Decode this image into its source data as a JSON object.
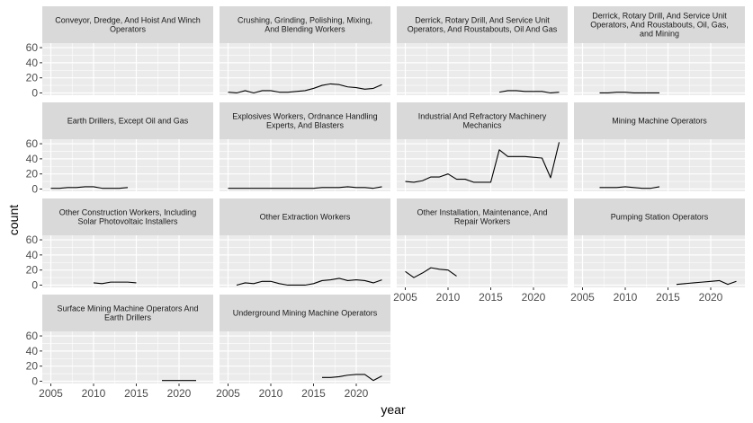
{
  "chart_data": {
    "type": "line",
    "xlabel": "year",
    "ylabel": "count",
    "xlim": [
      2004,
      2024
    ],
    "ylim": [
      -3,
      66
    ],
    "x_ticks": [
      2005,
      2010,
      2015,
      2020
    ],
    "y_ticks": [
      0,
      20,
      40,
      60
    ],
    "grid": true,
    "facets_per_row": 4,
    "colors": {
      "panel_bg": "#ebebeb",
      "strip_bg": "#d9d9d9",
      "grid": "#ffffff",
      "line": "#000000"
    },
    "panels": [
      {
        "title_lines": [
          "Conveyor, Dredge, And Hoist And Winch",
          "Operators"
        ],
        "x": [],
        "y": []
      },
      {
        "title_lines": [
          "Crushing, Grinding, Polishing, Mixing,",
          "And Blending Workers"
        ],
        "x": [
          2005,
          2006,
          2007,
          2008,
          2009,
          2010,
          2011,
          2012,
          2013,
          2014,
          2015,
          2016,
          2017,
          2018,
          2019,
          2020,
          2021,
          2022,
          2023
        ],
        "y": [
          1,
          0,
          3,
          0,
          3,
          3,
          1,
          1,
          2,
          3,
          6,
          10,
          12,
          11,
          8,
          7,
          5,
          6,
          11
        ]
      },
      {
        "title_lines": [
          "Derrick, Rotary Drill, And Service Unit",
          "Operators, And Roustabouts, Oil And Gas"
        ],
        "x": [
          2016,
          2017,
          2018,
          2019,
          2020,
          2021,
          2022,
          2023
        ],
        "y": [
          1,
          3,
          3,
          2,
          2,
          2,
          0,
          1
        ]
      },
      {
        "title_lines": [
          "Derrick, Rotary Drill, And Service Unit",
          "Operators, And Roustabouts, Oil, Gas,",
          "and Mining"
        ],
        "x": [
          2007,
          2008,
          2009,
          2010,
          2011,
          2012,
          2013,
          2014
        ],
        "y": [
          0,
          0,
          1,
          1,
          0,
          0,
          0,
          0
        ]
      },
      {
        "title_lines": [
          "Earth Drillers, Except Oil and Gas"
        ],
        "x": [
          2005,
          2006,
          2007,
          2008,
          2009,
          2010,
          2011,
          2012,
          2013,
          2014
        ],
        "y": [
          1,
          1,
          2,
          2,
          3,
          3,
          1,
          1,
          1,
          2
        ]
      },
      {
        "title_lines": [
          "Explosives Workers, Ordnance Handling",
          "Experts, And Blasters"
        ],
        "x": [
          2005,
          2006,
          2007,
          2008,
          2009,
          2010,
          2011,
          2012,
          2013,
          2014,
          2015,
          2016,
          2017,
          2018,
          2019,
          2020,
          2021,
          2022,
          2023
        ],
        "y": [
          1,
          1,
          1,
          1,
          1,
          1,
          1,
          1,
          1,
          1,
          1,
          2,
          2,
          2,
          3,
          2,
          2,
          1,
          3
        ]
      },
      {
        "title_lines": [
          "Industrial And Refractory Machinery",
          "Mechanics"
        ],
        "x": [
          2005,
          2006,
          2007,
          2008,
          2009,
          2010,
          2011,
          2012,
          2013,
          2014,
          2015,
          2016,
          2017,
          2018,
          2019,
          2020,
          2021,
          2022,
          2023
        ],
        "y": [
          10,
          9,
          11,
          16,
          16,
          20,
          13,
          13,
          9,
          9,
          9,
          52,
          43,
          43,
          43,
          42,
          41,
          15,
          62
        ]
      },
      {
        "title_lines": [
          "Mining Machine Operators"
        ],
        "x": [
          2007,
          2008,
          2009,
          2010,
          2011,
          2012,
          2013,
          2014
        ],
        "y": [
          2,
          2,
          2,
          3,
          2,
          1,
          1,
          3
        ]
      },
      {
        "title_lines": [
          "Other Construction Workers, Including",
          "Solar Photovoltaic Installers"
        ],
        "x": [
          2010,
          2011,
          2012,
          2013,
          2014,
          2015
        ],
        "y": [
          3,
          2,
          4,
          4,
          4,
          3
        ]
      },
      {
        "title_lines": [
          "Other Extraction Workers"
        ],
        "x": [
          2006,
          2007,
          2008,
          2009,
          2010,
          2011,
          2012,
          2013,
          2014,
          2015,
          2016,
          2017,
          2018,
          2019,
          2020,
          2021,
          2022,
          2023
        ],
        "y": [
          0,
          3,
          2,
          5,
          5,
          2,
          0,
          0,
          0,
          2,
          6,
          7,
          9,
          6,
          7,
          6,
          3,
          7
        ]
      },
      {
        "title_lines": [
          "Other Installation, Maintenance, And",
          "Repair Workers"
        ],
        "x": [
          2005,
          2006,
          2007,
          2008,
          2009,
          2010,
          2011
        ],
        "y": [
          18,
          10,
          16,
          23,
          21,
          20,
          12
        ]
      },
      {
        "title_lines": [
          "Pumping Station Operators"
        ],
        "x": [
          2016,
          2017,
          2018,
          2019,
          2020,
          2021,
          2022,
          2023
        ],
        "y": [
          1,
          2,
          3,
          4,
          5,
          6,
          1,
          5
        ]
      },
      {
        "title_lines": [
          "Surface Mining Machine Operators And",
          "Earth Drillers"
        ],
        "x": [
          2018,
          2019,
          2020,
          2021,
          2022
        ],
        "y": [
          1,
          1,
          1,
          1,
          1
        ]
      },
      {
        "title_lines": [
          "Underground Mining Machine Operators"
        ],
        "x": [
          2016,
          2017,
          2018,
          2019,
          2020,
          2021,
          2022,
          2023
        ],
        "y": [
          5,
          5,
          6,
          8,
          9,
          9,
          1,
          7
        ]
      }
    ]
  }
}
